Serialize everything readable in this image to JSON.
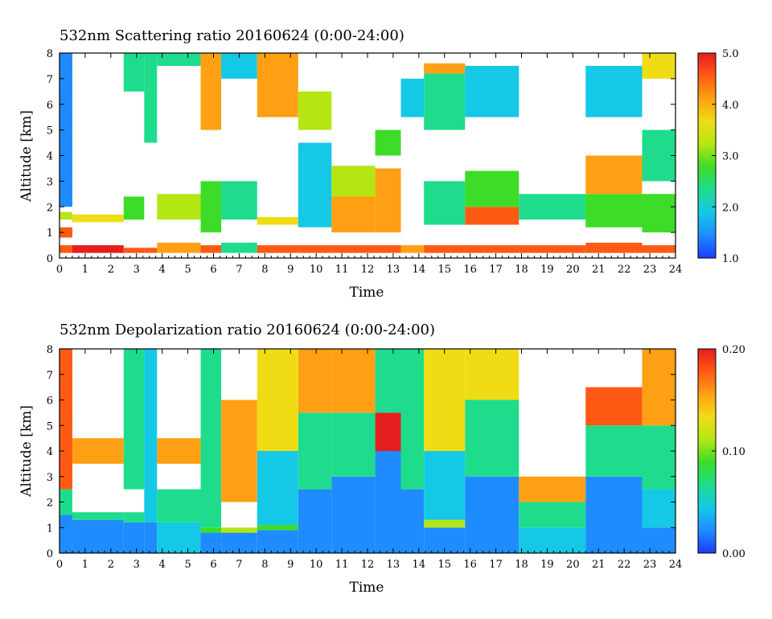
{
  "colors": {
    "colormap": [
      "#1e3cff",
      "#1e8cff",
      "#14c8e6",
      "#1edc8c",
      "#3cdc28",
      "#b4e614",
      "#f0dc14",
      "#ffa014",
      "#ff5a14",
      "#e61e1e"
    ],
    "plot_border": "#000000",
    "background": "#ffffff"
  },
  "chart_data": [
    {
      "type": "heatmap",
      "title": "532nm Scattering ratio  20160624 (0:00-24:00)",
      "xlabel": "Time",
      "ylabel": "Altitude [km]",
      "xlim": [
        0,
        24
      ],
      "ylim": [
        0,
        8
      ],
      "x_ticks": [
        "0",
        "1",
        "2",
        "3",
        "4",
        "5",
        "6",
        "7",
        "8",
        "9",
        "10",
        "11",
        "12",
        "13",
        "14",
        "15",
        "16",
        "17",
        "18",
        "19",
        "20",
        "21",
        "22",
        "23",
        "24"
      ],
      "y_ticks": [
        "0",
        "1",
        "2",
        "3",
        "4",
        "5",
        "6",
        "7",
        "8"
      ],
      "colorbar": {
        "min": 1.0,
        "max": 5.0,
        "tick_labels": [
          "1.0",
          "2.0",
          "3.0",
          "4.0",
          "5.0"
        ]
      },
      "columns": [
        {
          "t": 0.0,
          "t1": 0.5,
          "segments": [
            [
              0.2,
              0.5,
              4.5
            ],
            [
              0.8,
              1.2,
              4.3
            ],
            [
              1.5,
              1.8,
              3.2
            ],
            [
              2.0,
              8.0,
              1.6
            ]
          ]
        },
        {
          "t": 0.5,
          "t1": 2.5,
          "segments": [
            [
              0.2,
              0.5,
              4.6
            ],
            [
              1.4,
              1.7,
              3.6
            ]
          ]
        },
        {
          "t": 2.5,
          "t1": 3.3,
          "segments": [
            [
              0.2,
              0.4,
              4.5
            ],
            [
              6.5,
              8.0,
              2.4
            ],
            [
              1.5,
              2.4,
              2.8
            ]
          ]
        },
        {
          "t": 3.3,
          "t1": 3.8,
          "segments": [
            [
              0.2,
              0.4,
              4.4
            ],
            [
              4.5,
              8.0,
              2.2
            ]
          ]
        },
        {
          "t": 3.8,
          "t1": 5.5,
          "segments": [
            [
              0.2,
              0.6,
              3.8
            ],
            [
              1.5,
              2.5,
              3.0
            ],
            [
              7.5,
              8.0,
              2.5
            ]
          ]
        },
        {
          "t": 5.5,
          "t1": 6.3,
          "segments": [
            [
              0.2,
              0.5,
              4.2
            ],
            [
              5.0,
              8.0,
              3.8
            ],
            [
              1.0,
              3.0,
              2.8
            ]
          ]
        },
        {
          "t": 6.3,
          "t1": 7.7,
          "segments": [
            [
              0.2,
              0.6,
              2.4
            ],
            [
              7.0,
              8.0,
              2.1
            ],
            [
              1.5,
              3.0,
              2.2
            ]
          ]
        },
        {
          "t": 7.7,
          "t1": 9.3,
          "segments": [
            [
              0.2,
              0.5,
              4.3
            ],
            [
              5.5,
              8.0,
              4.0
            ],
            [
              1.3,
              1.6,
              3.4
            ]
          ]
        },
        {
          "t": 9.3,
          "t1": 10.6,
          "segments": [
            [
              0.2,
              0.5,
              4.4
            ],
            [
              1.2,
              4.5,
              2.0
            ],
            [
              5.0,
              6.5,
              3.0
            ]
          ]
        },
        {
          "t": 10.6,
          "t1": 12.3,
          "segments": [
            [
              0.2,
              0.5,
              4.4
            ],
            [
              1.0,
              2.4,
              4.1
            ],
            [
              2.4,
              3.6,
              3.2
            ]
          ]
        },
        {
          "t": 12.3,
          "t1": 13.3,
          "segments": [
            [
              0.2,
              0.5,
              4.2
            ],
            [
              1.0,
              3.5,
              3.8
            ],
            [
              4.0,
              5.0,
              2.6
            ]
          ]
        },
        {
          "t": 13.3,
          "t1": 14.2,
          "segments": [
            [
              0.2,
              0.5,
              4.1
            ],
            [
              5.5,
              7.0,
              2.0
            ]
          ]
        },
        {
          "t": 14.2,
          "t1": 15.8,
          "segments": [
            [
              0.2,
              0.5,
              4.5
            ],
            [
              1.3,
              3.0,
              2.2
            ],
            [
              5.0,
              7.5,
              2.4
            ],
            [
              7.2,
              7.6,
              3.9
            ]
          ]
        },
        {
          "t": 15.8,
          "t1": 17.9,
          "segments": [
            [
              0.2,
              0.5,
              4.4
            ],
            [
              1.3,
              2.0,
              4.3
            ],
            [
              2.0,
              3.4,
              2.6
            ],
            [
              5.5,
              7.5,
              2.0
            ]
          ]
        },
        {
          "t": 17.9,
          "t1": 20.5,
          "segments": [
            [
              0.2,
              0.5,
              4.2
            ],
            [
              1.5,
              2.5,
              2.3
            ]
          ]
        },
        {
          "t": 20.5,
          "t1": 22.7,
          "segments": [
            [
              0.2,
              0.6,
              4.3
            ],
            [
              1.2,
              2.5,
              2.6
            ],
            [
              2.5,
              4.0,
              3.8
            ],
            [
              5.5,
              7.5,
              2.0
            ]
          ]
        },
        {
          "t": 22.7,
          "t1": 24.0,
          "segments": [
            [
              0.2,
              0.5,
              4.2
            ],
            [
              1.0,
              2.5,
              2.6
            ],
            [
              3.0,
              5.0,
              2.4
            ],
            [
              7.0,
              8.0,
              3.5
            ]
          ]
        }
      ]
    },
    {
      "type": "heatmap",
      "title": "532nm Depolarization ratio  20160624 (0:00-24:00)",
      "xlabel": "Time",
      "ylabel": "Altitude [km]",
      "xlim": [
        0,
        24
      ],
      "ylim": [
        0,
        8
      ],
      "x_ticks": [
        "0",
        "1",
        "2",
        "3",
        "4",
        "5",
        "6",
        "7",
        "8",
        "9",
        "10",
        "11",
        "12",
        "13",
        "14",
        "15",
        "16",
        "17",
        "18",
        "19",
        "20",
        "21",
        "22",
        "23",
        "24"
      ],
      "y_ticks": [
        "0",
        "1",
        "2",
        "3",
        "4",
        "5",
        "6",
        "7",
        "8"
      ],
      "colorbar": {
        "min": 0.0,
        "max": 0.2,
        "tick_labels": [
          "0.00",
          "0.10",
          "0.20"
        ]
      },
      "columns": [
        {
          "t": 0.0,
          "t1": 0.5,
          "segments": [
            [
              0.0,
              1.5,
              0.03
            ],
            [
              1.5,
              2.5,
              0.07
            ],
            [
              2.5,
              8.0,
              0.17
            ]
          ]
        },
        {
          "t": 0.5,
          "t1": 2.5,
          "segments": [
            [
              0.0,
              1.3,
              0.04
            ],
            [
              1.3,
              1.6,
              0.08
            ],
            [
              3.5,
              4.5,
              0.16
            ]
          ]
        },
        {
          "t": 2.5,
          "t1": 3.3,
          "segments": [
            [
              0.0,
              1.2,
              0.04
            ],
            [
              1.2,
              1.6,
              0.06
            ],
            [
              2.5,
              8.0,
              0.07
            ]
          ]
        },
        {
          "t": 3.3,
          "t1": 3.8,
          "segments": [
            [
              0.0,
              1.2,
              0.04
            ],
            [
              1.2,
              8.0,
              0.05
            ]
          ]
        },
        {
          "t": 3.8,
          "t1": 5.5,
          "segments": [
            [
              0.0,
              1.2,
              0.05
            ],
            [
              1.2,
              2.5,
              0.07
            ],
            [
              3.5,
              4.5,
              0.16
            ]
          ]
        },
        {
          "t": 5.5,
          "t1": 6.3,
          "segments": [
            [
              0.0,
              0.8,
              0.04
            ],
            [
              0.8,
              1.0,
              0.09
            ],
            [
              1.0,
              8.0,
              0.06
            ]
          ]
        },
        {
          "t": 6.3,
          "t1": 7.7,
          "segments": [
            [
              0.0,
              0.8,
              0.04
            ],
            [
              0.8,
              1.0,
              0.1
            ],
            [
              2.0,
              6.0,
              0.16
            ]
          ]
        },
        {
          "t": 7.7,
          "t1": 9.3,
          "segments": [
            [
              0.0,
              0.9,
              0.04
            ],
            [
              0.9,
              1.1,
              0.09
            ],
            [
              1.1,
              4.0,
              0.05
            ],
            [
              4.0,
              8.0,
              0.12
            ]
          ]
        },
        {
          "t": 9.3,
          "t1": 10.6,
          "segments": [
            [
              0.0,
              2.5,
              0.04
            ],
            [
              2.5,
              5.5,
              0.06
            ],
            [
              5.5,
              8.0,
              0.14
            ]
          ]
        },
        {
          "t": 10.6,
          "t1": 12.3,
          "segments": [
            [
              0.0,
              3.0,
              0.04
            ],
            [
              3.0,
              5.5,
              0.08
            ],
            [
              5.5,
              8.0,
              0.15
            ]
          ]
        },
        {
          "t": 12.3,
          "t1": 13.3,
          "segments": [
            [
              0.0,
              4.0,
              0.04
            ],
            [
              4.0,
              5.5,
              0.18
            ],
            [
              5.5,
              8.0,
              0.07
            ]
          ]
        },
        {
          "t": 13.3,
          "t1": 14.2,
          "segments": [
            [
              0.0,
              2.5,
              0.04
            ],
            [
              2.5,
              8.0,
              0.06
            ]
          ]
        },
        {
          "t": 14.2,
          "t1": 15.8,
          "segments": [
            [
              0.0,
              1.0,
              0.04
            ],
            [
              1.0,
              1.3,
              0.1
            ],
            [
              1.3,
              4.0,
              0.05
            ],
            [
              4.0,
              8.0,
              0.13
            ]
          ]
        },
        {
          "t": 15.8,
          "t1": 17.9,
          "segments": [
            [
              0.0,
              3.0,
              0.04
            ],
            [
              3.0,
              6.0,
              0.06
            ],
            [
              6.0,
              8.0,
              0.12
            ]
          ]
        },
        {
          "t": 17.9,
          "t1": 20.5,
          "segments": [
            [
              0.0,
              1.0,
              0.05
            ],
            [
              1.0,
              2.0,
              0.07
            ],
            [
              2.0,
              3.0,
              0.16
            ]
          ]
        },
        {
          "t": 20.5,
          "t1": 22.7,
          "segments": [
            [
              0.0,
              3.0,
              0.04
            ],
            [
              3.0,
              5.0,
              0.07
            ],
            [
              5.0,
              6.5,
              0.17
            ]
          ]
        },
        {
          "t": 22.7,
          "t1": 24.0,
          "segments": [
            [
              0.0,
              1.0,
              0.04
            ],
            [
              1.0,
              2.5,
              0.05
            ],
            [
              2.5,
              5.0,
              0.06
            ],
            [
              5.0,
              8.0,
              0.15
            ]
          ]
        }
      ]
    }
  ]
}
